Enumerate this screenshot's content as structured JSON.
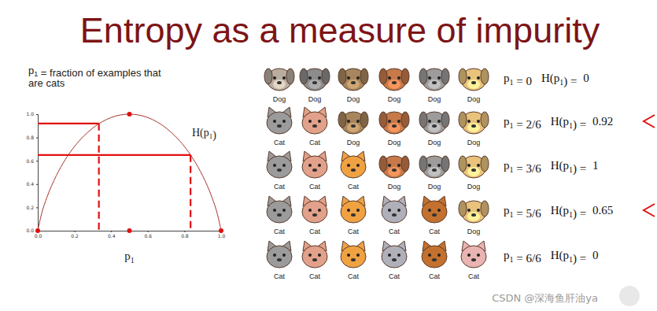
{
  "title": "Entropy as a measure of impurity",
  "description": [
    "p1 = fraction of examples that",
    "are cats"
  ],
  "chart_data": {
    "type": "line",
    "x_label": "p1",
    "curve_label": "H(p1)",
    "color": "#a8352c",
    "x": [
      0,
      0.02,
      0.05,
      0.1,
      0.15,
      0.2,
      0.25,
      0.3,
      0.35,
      0.4,
      0.45,
      0.5,
      0.55,
      0.6,
      0.65,
      0.7,
      0.75,
      0.8,
      0.85,
      0.9,
      0.95,
      0.98,
      1
    ],
    "values": [
      0,
      0.141,
      0.286,
      0.469,
      0.61,
      0.722,
      0.811,
      0.881,
      0.934,
      0.971,
      0.993,
      1,
      0.993,
      0.971,
      0.934,
      0.881,
      0.811,
      0.722,
      0.61,
      0.469,
      0.286,
      0.141,
      0
    ],
    "xlim": [
      0,
      1
    ],
    "ylim": [
      0,
      1
    ],
    "xticks": [
      {
        "value": 0,
        "label": "0.0"
      },
      0.2,
      0.4,
      0.6,
      0.8,
      {
        "value": 1,
        "label": "1.0"
      }
    ],
    "yticks": [
      {
        "value": 0,
        "label": "0.0"
      },
      0.2,
      0.4,
      0.6,
      0.8,
      {
        "value": 1,
        "label": "1.0"
      }
    ],
    "marked_points": {
      "x": [
        0,
        0.5,
        0.5,
        1
      ],
      "y": [
        0,
        1,
        0,
        0
      ]
    },
    "guides": {
      "x": [
        0.3333,
        0.8333
      ],
      "y": [
        0.92,
        0.65
      ]
    }
  },
  "examples": {
    "h_prefix": "H(p1) = ",
    "rows": [
      {
        "labels": [
          "Dog",
          "Dog",
          "Dog",
          "Dog",
          "Dog",
          "Dog"
        ],
        "p1_text": "p1 = 0",
        "entropy": 0,
        "arrow": false
      },
      {
        "labels": [
          "Cat",
          "Cat",
          "Dog",
          "Dog",
          "Dog",
          "Dog"
        ],
        "p1_text": "p1 = 2/6",
        "entropy": 0.92,
        "arrow": true
      },
      {
        "labels": [
          "Cat",
          "Cat",
          "Cat",
          "Dog",
          "Dog",
          "Dog"
        ],
        "p1_text": "p1 = 3/6",
        "entropy": 1,
        "arrow": false
      },
      {
        "labels": [
          "Cat",
          "Cat",
          "Cat",
          "Cat",
          "Cat",
          "Dog"
        ],
        "p1_text": "p1 = 5/6",
        "entropy": 0.65,
        "arrow": true
      },
      {
        "labels": [
          "Cat",
          "Cat",
          "Cat",
          "Cat",
          "Cat",
          "Cat"
        ],
        "p1_text": "p1 = 6/6",
        "entropy": 0,
        "arrow": false
      }
    ]
  },
  "watermark": "CSDN @深海鱼肝油ya"
}
